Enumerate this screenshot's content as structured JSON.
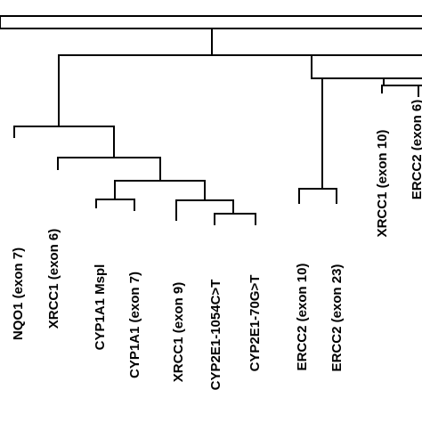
{
  "colors": {
    "line": "#000000",
    "background": "#ffffff"
  },
  "dendrogram": {
    "leaves": [
      {
        "id": "nqo1",
        "label": "NQO1 (exon 7)"
      },
      {
        "id": "xrcc1_e6",
        "label": "XRCC1 (exon 6)"
      },
      {
        "id": "cyp1a1_mspl",
        "label": "CYP1A1 Mspl"
      },
      {
        "id": "cyp1a1_e7",
        "label": "CYP1A1 (exon 7)"
      },
      {
        "id": "xrcc1_e9",
        "label": "XRCC1 (exon 9)"
      },
      {
        "id": "cyp2e1_1054",
        "label": "CYP2E1-1054C>T"
      },
      {
        "id": "cyp2e1_70",
        "label": "CYP2E1-70G>T"
      },
      {
        "id": "ercc2_e10",
        "label": "ERCC2 (exon 10)"
      },
      {
        "id": "ercc2_e23",
        "label": "ERCC2 (exon 23)"
      },
      {
        "id": "xrcc1_e10",
        "label": "XRCC1 (exon 10)"
      },
      {
        "id": "ercc2_e6",
        "label": "ERCC2 (exon 6)"
      }
    ]
  }
}
